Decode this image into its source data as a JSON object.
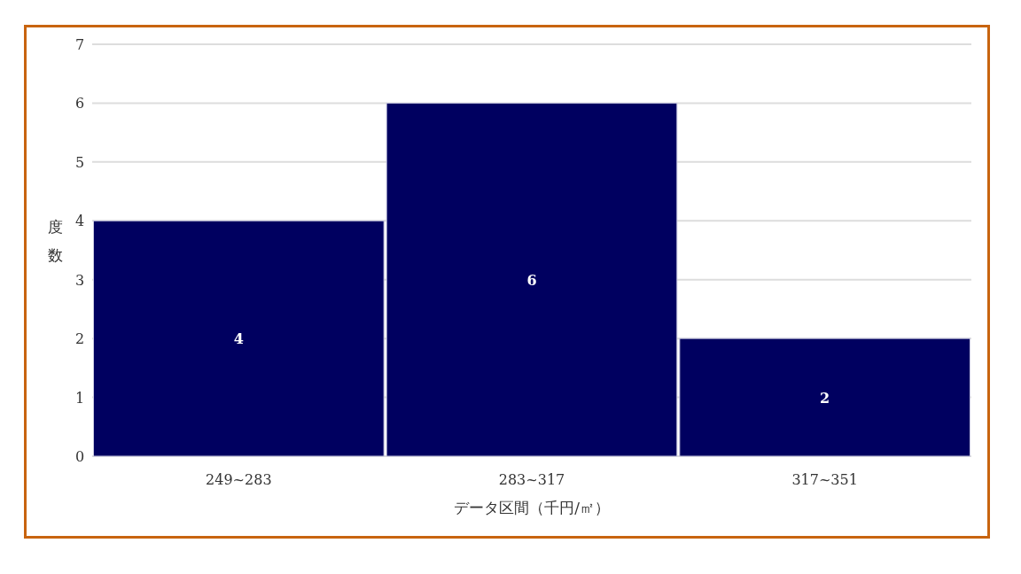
{
  "chart_data": {
    "type": "bar",
    "xlabel": "データ区間（千円/㎡）",
    "ylabel": "度数",
    "categories": [
      "249~283",
      "283~317",
      "317~351"
    ],
    "values": [
      4,
      6,
      2
    ],
    "color": "#000060",
    "ylim": [
      0,
      7
    ],
    "yticks": [
      0,
      1,
      2,
      3,
      4,
      5,
      6,
      7
    ],
    "grid": "y",
    "data_labels": true
  }
}
